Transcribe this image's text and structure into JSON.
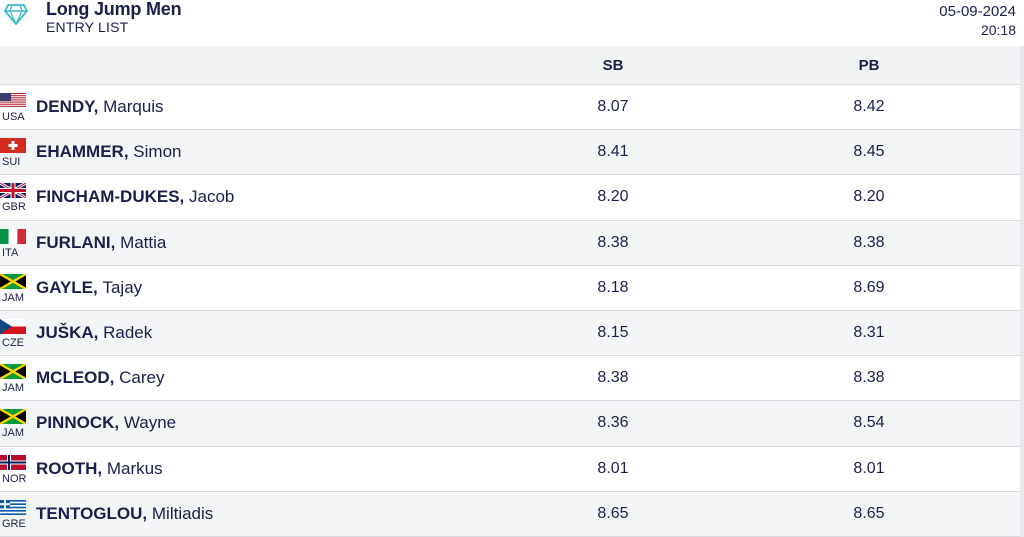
{
  "header": {
    "title": "Long Jump Men",
    "subtitle": "ENTRY LIST",
    "date": "05-09-2024",
    "time": "20:18",
    "logo_icon": "diamond-icon"
  },
  "columns": {
    "sb": "SB",
    "pb": "PB"
  },
  "athletes": [
    {
      "code": "USA",
      "last": "DENDY,",
      "first": "Marquis",
      "sb": "8.07",
      "pb": "8.42",
      "flag": "usa-flag-icon"
    },
    {
      "code": "SUI",
      "last": "EHAMMER,",
      "first": "Simon",
      "sb": "8.41",
      "pb": "8.45",
      "flag": "sui-flag-icon"
    },
    {
      "code": "GBR",
      "last": "FINCHAM-DUKES,",
      "first": "Jacob",
      "sb": "8.20",
      "pb": "8.20",
      "flag": "gbr-flag-icon"
    },
    {
      "code": "ITA",
      "last": "FURLANI,",
      "first": "Mattia",
      "sb": "8.38",
      "pb": "8.38",
      "flag": "ita-flag-icon"
    },
    {
      "code": "JAM",
      "last": "GAYLE,",
      "first": "Tajay",
      "sb": "8.18",
      "pb": "8.69",
      "flag": "jam-flag-icon"
    },
    {
      "code": "CZE",
      "last": "JUŠKA,",
      "first": "Radek",
      "sb": "8.15",
      "pb": "8.31",
      "flag": "cze-flag-icon"
    },
    {
      "code": "JAM",
      "last": "MCLEOD,",
      "first": "Carey",
      "sb": "8.38",
      "pb": "8.38",
      "flag": "jam-flag-icon"
    },
    {
      "code": "JAM",
      "last": "PINNOCK,",
      "first": "Wayne",
      "sb": "8.36",
      "pb": "8.54",
      "flag": "jam-flag-icon"
    },
    {
      "code": "NOR",
      "last": "ROOTH,",
      "first": "Markus",
      "sb": "8.01",
      "pb": "8.01",
      "flag": "nor-flag-icon"
    },
    {
      "code": "GRE",
      "last": "TENTOGLOU,",
      "first": "Miltiadis",
      "sb": "8.65",
      "pb": "8.65",
      "flag": "gre-flag-icon"
    }
  ]
}
